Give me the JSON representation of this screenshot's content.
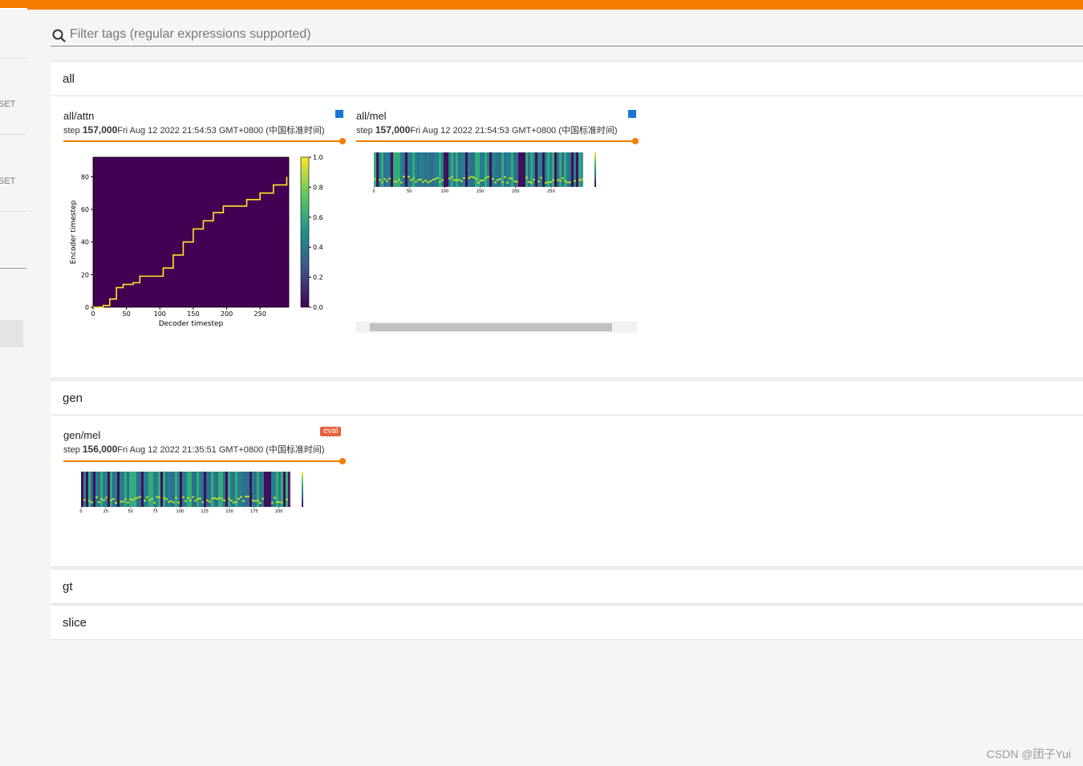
{
  "search": {
    "placeholder": "Filter tags (regular expressions supported)"
  },
  "sidebar": {
    "items": [
      "SET",
      "SET"
    ]
  },
  "sections": [
    {
      "name": "all",
      "cards": [
        {
          "tag": "all/attn",
          "step_label": "step",
          "step": "157,000",
          "time": "Fri Aug 12 2022 21:54:53 GMT+0800 (中国标准时间)"
        },
        {
          "tag": "all/mel",
          "step_label": "step",
          "step": "157,000",
          "time": "Fri Aug 12 2022 21:54:53 GMT+0800 (中国标准时间)"
        }
      ]
    },
    {
      "name": "gen",
      "cards": [
        {
          "tag": "gen/mel",
          "badge": "eval",
          "step_label": "step",
          "step": "156,000",
          "time": "Fri Aug 12 2022 21:35:51 GMT+0800 (中国标准时间)"
        }
      ]
    },
    {
      "name": "gt"
    },
    {
      "name": "slice"
    }
  ],
  "attn_plot": {
    "type": "line",
    "xlabel": "Decoder timestep",
    "ylabel": "Encoder timestep",
    "xlim": [
      0,
      293
    ],
    "ylim": [
      0,
      92
    ],
    "xticks": [
      0,
      50,
      100,
      150,
      200,
      250
    ],
    "yticks": [
      0,
      20,
      40,
      60,
      80
    ],
    "color": "#fde725",
    "x": [
      0,
      15,
      25,
      35,
      45,
      60,
      70,
      90,
      105,
      120,
      135,
      150,
      165,
      180,
      195,
      215,
      230,
      250,
      270,
      290
    ],
    "y": [
      0,
      1,
      5,
      12,
      14,
      15,
      19,
      19,
      24,
      32,
      40,
      48,
      53,
      58,
      62,
      62,
      66,
      70,
      75,
      80
    ],
    "clim": [
      0,
      1
    ],
    "cticks": [
      {
        "value": 0,
        "label": "0.0"
      },
      {
        "value": 0.2,
        "label": "0.2"
      },
      {
        "value": 0.4,
        "label": "0.4"
      },
      {
        "value": 0.6,
        "label": "0.6"
      },
      {
        "value": 0.8,
        "label": "0.8"
      },
      {
        "value": 1,
        "label": "1.0"
      }
    ]
  },
  "mel_plots": [
    {
      "xlim": [
        0,
        293
      ],
      "xticks": [
        0,
        50,
        100,
        150,
        200,
        250
      ]
    },
    {
      "xlim": [
        0,
        210
      ],
      "xticks": [
        0,
        25,
        50,
        75,
        100,
        125,
        150,
        175,
        200
      ]
    }
  ],
  "watermark": "CSDN @团子Yui"
}
